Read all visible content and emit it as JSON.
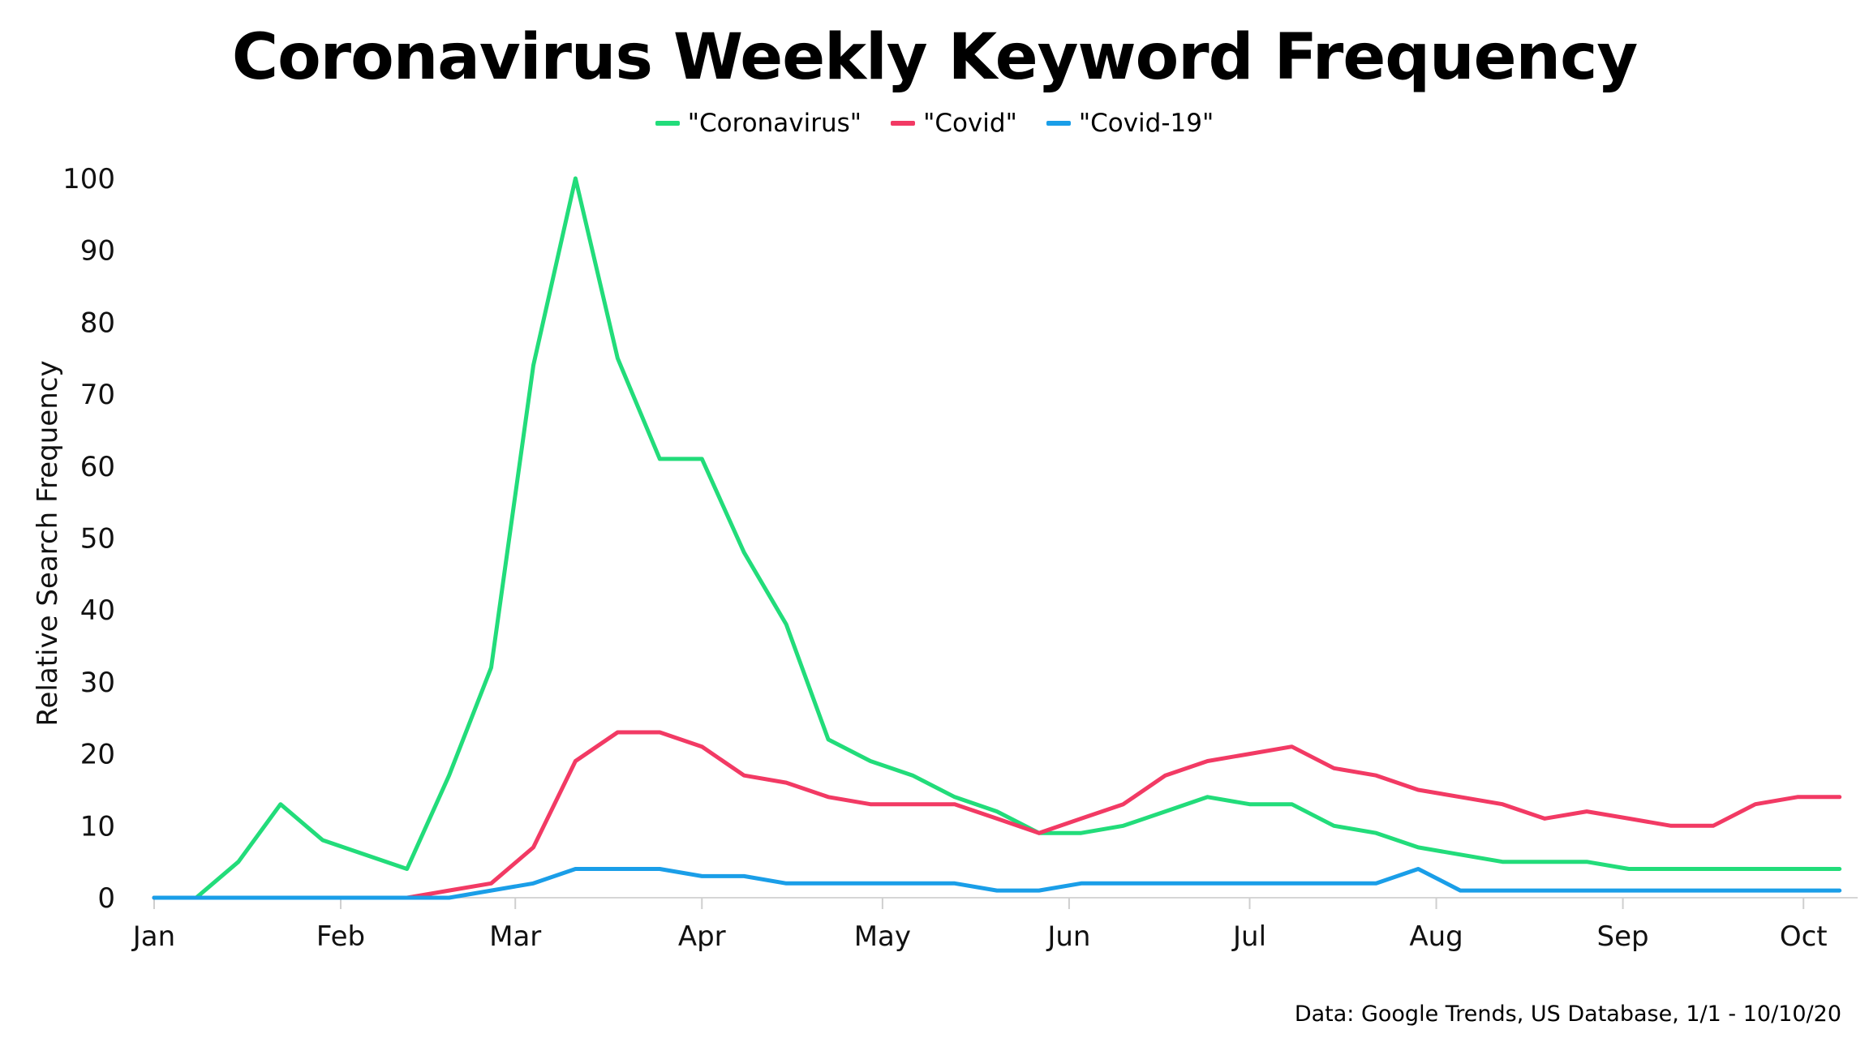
{
  "chart_data": {
    "type": "line",
    "title": "Coronavirus Weekly Keyword Frequency",
    "ylabel": "Relative Search Frequency",
    "xlabel": "",
    "ylim": [
      0,
      100
    ],
    "yticks": [
      0,
      10,
      20,
      30,
      40,
      50,
      60,
      70,
      80,
      90,
      100
    ],
    "xlim": [
      "2020-01-01",
      "2020-10-10"
    ],
    "x_ticks": [
      {
        "label": "Jan",
        "date": "2020-01-01"
      },
      {
        "label": "Feb",
        "date": "2020-02-01"
      },
      {
        "label": "Mar",
        "date": "2020-03-01"
      },
      {
        "label": "Apr",
        "date": "2020-04-01"
      },
      {
        "label": "May",
        "date": "2020-05-01"
      },
      {
        "label": "Jun",
        "date": "2020-06-01"
      },
      {
        "label": "Jul",
        "date": "2020-07-01"
      },
      {
        "label": "Aug",
        "date": "2020-08-01"
      },
      {
        "label": "Sep",
        "date": "2020-09-01"
      },
      {
        "label": "Oct",
        "date": "2020-10-01"
      }
    ],
    "x": [
      "2020-01-01",
      "2020-01-08",
      "2020-01-15",
      "2020-01-22",
      "2020-01-29",
      "2020-02-05",
      "2020-02-12",
      "2020-02-19",
      "2020-02-26",
      "2020-03-04",
      "2020-03-11",
      "2020-03-18",
      "2020-03-25",
      "2020-04-01",
      "2020-04-08",
      "2020-04-15",
      "2020-04-22",
      "2020-04-29",
      "2020-05-06",
      "2020-05-13",
      "2020-05-20",
      "2020-05-27",
      "2020-06-03",
      "2020-06-10",
      "2020-06-17",
      "2020-06-24",
      "2020-07-01",
      "2020-07-08",
      "2020-07-15",
      "2020-07-22",
      "2020-07-29",
      "2020-08-05",
      "2020-08-12",
      "2020-08-19",
      "2020-08-26",
      "2020-09-02",
      "2020-09-09",
      "2020-09-16",
      "2020-09-23",
      "2020-09-30",
      "2020-10-07"
    ],
    "series": [
      {
        "name": "\"Coronavirus\"",
        "color": "#22dc7a",
        "values": [
          0,
          0,
          5,
          13,
          8,
          6,
          4,
          17,
          32,
          74,
          100,
          75,
          61,
          61,
          48,
          38,
          22,
          19,
          17,
          14,
          12,
          9,
          9,
          10,
          12,
          14,
          13,
          13,
          10,
          9,
          7,
          6,
          5,
          5,
          5,
          4,
          4,
          4,
          4,
          4,
          4
        ]
      },
      {
        "name": "\"Covid\"",
        "color": "#f23a64",
        "values": [
          0,
          0,
          0,
          0,
          0,
          0,
          0,
          1,
          2,
          7,
          19,
          23,
          23,
          21,
          17,
          16,
          14,
          13,
          13,
          13,
          11,
          9,
          11,
          13,
          17,
          19,
          20,
          21,
          18,
          17,
          15,
          14,
          13,
          11,
          12,
          11,
          10,
          10,
          13,
          14,
          14
        ]
      },
      {
        "name": "\"Covid-19\"",
        "color": "#1a9ee8",
        "values": [
          0,
          0,
          0,
          0,
          0,
          0,
          0,
          0,
          1,
          2,
          4,
          4,
          4,
          3,
          3,
          2,
          2,
          2,
          2,
          2,
          1,
          1,
          2,
          2,
          2,
          2,
          2,
          2,
          2,
          2,
          4,
          1,
          1,
          1,
          1,
          1,
          1,
          1,
          1,
          1,
          1
        ]
      }
    ],
    "legend_position": "top-center",
    "grid": false
  },
  "source_note": "Data: Google Trends, US Database, 1/1 - 10/10/20"
}
